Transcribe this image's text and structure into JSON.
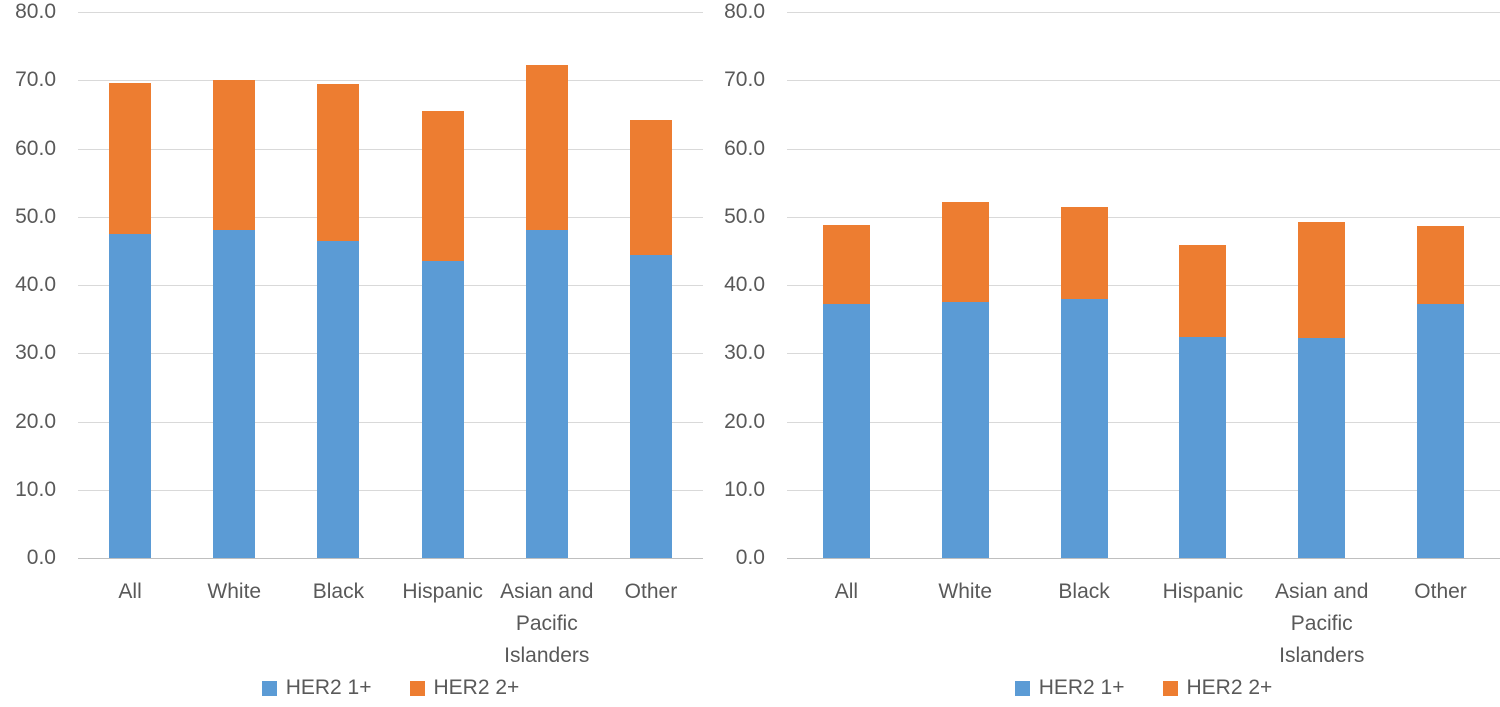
{
  "colors": {
    "her2_1plus": "#5B9BD5",
    "her2_2plus": "#ED7D31",
    "gridline": "#D9D9D9",
    "axis_line": "#BFBFBF",
    "label_text": "#595959"
  },
  "chart_data": [
    {
      "type": "bar",
      "stacked": true,
      "title": "",
      "xlabel": "",
      "ylabel": "",
      "categories": [
        "All",
        "White",
        "Black",
        "Hispanic",
        "Asian and Pacific Islanders",
        "Other"
      ],
      "series": [
        {
          "name": "HER2 1+",
          "color": "#5B9BD5",
          "values": [
            47.5,
            48.0,
            46.5,
            43.5,
            48.0,
            44.4
          ]
        },
        {
          "name": "HER2 2+",
          "color": "#ED7D31",
          "values": [
            22.1,
            22.0,
            22.9,
            22.0,
            24.3,
            19.8
          ]
        }
      ],
      "stack_totals": [
        69.6,
        70.0,
        69.4,
        65.5,
        72.3,
        64.2
      ],
      "ylim": [
        0,
        80
      ],
      "yticks": [
        "0.0",
        "10.0",
        "20.0",
        "30.0",
        "40.0",
        "50.0",
        "60.0",
        "70.0",
        "80.0"
      ],
      "grid": true,
      "legend_position": "bottom"
    },
    {
      "type": "bar",
      "stacked": true,
      "title": "",
      "xlabel": "",
      "ylabel": "",
      "categories": [
        "All",
        "White",
        "Black",
        "Hispanic",
        "Asian and Pacific Islanders",
        "Other"
      ],
      "series": [
        {
          "name": "HER2 1+",
          "color": "#5B9BD5",
          "values": [
            37.2,
            37.5,
            38.0,
            32.4,
            32.3,
            37.2
          ]
        },
        {
          "name": "HER2 2+",
          "color": "#ED7D31",
          "values": [
            11.6,
            14.7,
            13.4,
            13.4,
            16.9,
            11.5
          ]
        }
      ],
      "stack_totals": [
        48.8,
        52.2,
        51.4,
        45.8,
        49.2,
        48.7
      ],
      "ylim": [
        0,
        80
      ],
      "yticks": [
        "0.0",
        "10.0",
        "20.0",
        "30.0",
        "40.0",
        "50.0",
        "60.0",
        "70.0",
        "80.0"
      ],
      "grid": true,
      "legend_position": "bottom"
    }
  ]
}
